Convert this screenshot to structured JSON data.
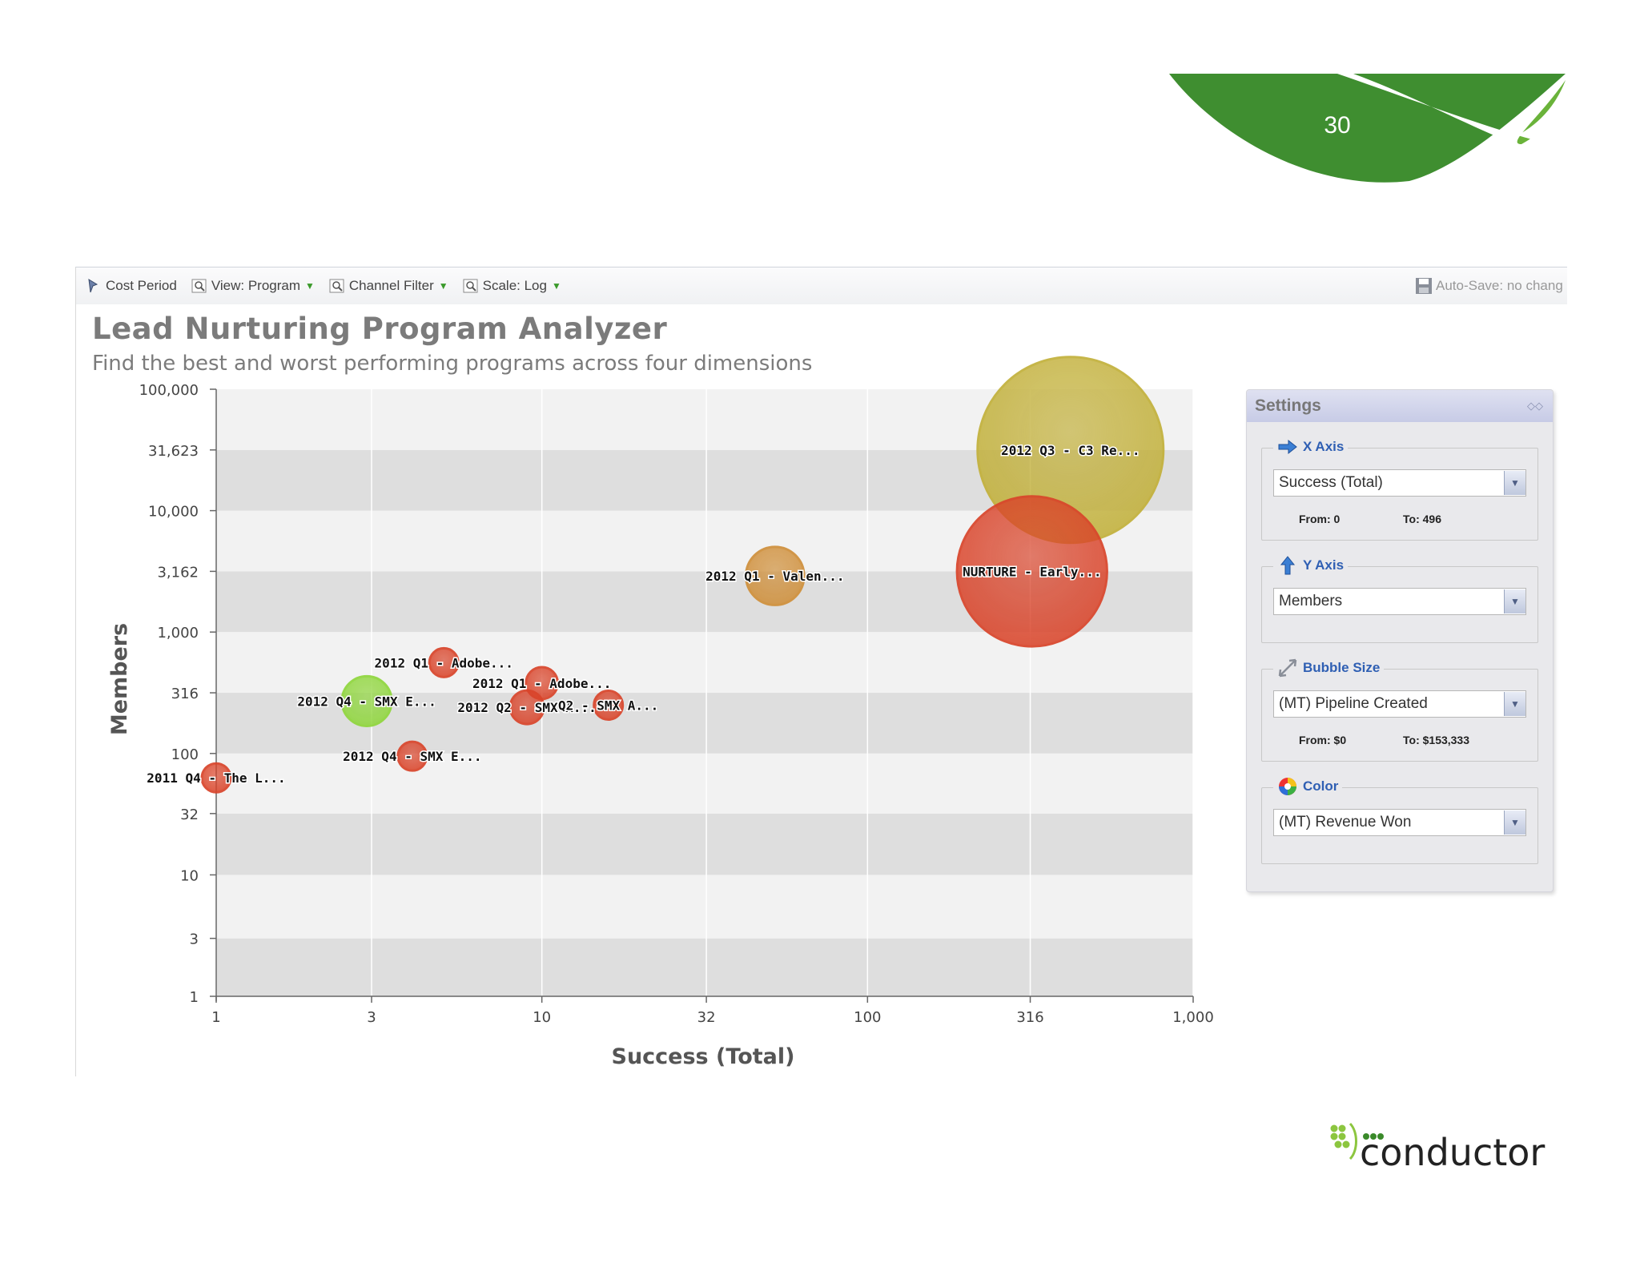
{
  "slide": {
    "number": "30"
  },
  "toolbar": {
    "items": [
      {
        "label": "Cost Period"
      },
      {
        "label": "View: Program"
      },
      {
        "label": "Channel Filter"
      },
      {
        "label": "Scale: Log"
      }
    ],
    "autosave": "Auto-Save: no chang"
  },
  "app": {
    "title": "Lead Nurturing Program Analyzer",
    "subtitle": "Find the best and worst performing programs across four dimensions"
  },
  "settings": {
    "title": "Settings",
    "x_axis": {
      "legend": "X Axis",
      "value": "Success (Total)",
      "from": "From: 0",
      "to": "To: 496"
    },
    "y_axis": {
      "legend": "Y Axis",
      "value": "Members"
    },
    "bubble_size": {
      "legend": "Bubble Size",
      "value": "(MT) Pipeline Created",
      "from": "From: $0",
      "to": "To: $153,333"
    },
    "color": {
      "legend": "Color",
      "value": "(MT) Revenue Won"
    }
  },
  "logo": {
    "text": "conductor"
  },
  "colors": {
    "green_light": "#8fc84a",
    "green_dark": "#2e8a2e",
    "bubble_red": "#d9442a",
    "bubble_orange": "#cf8f3a",
    "bubble_olive": "#c2b03a",
    "bubble_green": "#8fd63c"
  },
  "chart_data": {
    "type": "scatter",
    "xlabel": "Success (Total)",
    "ylabel": "Members",
    "x_scale": "log",
    "y_scale": "log",
    "xlim": [
      1,
      1000
    ],
    "ylim": [
      1,
      100000
    ],
    "x_ticks": [
      1,
      3,
      10,
      32,
      100,
      316,
      1000
    ],
    "x_tick_labels": [
      "1",
      "3",
      "10",
      "32",
      "100",
      "316",
      "1,000"
    ],
    "y_ticks": [
      1,
      3,
      10,
      32,
      100,
      316,
      1000,
      3162,
      10000,
      31623,
      100000
    ],
    "y_tick_labels": [
      "1",
      "3",
      "10",
      "32",
      "100",
      "316",
      "1,000",
      "3,162",
      "10,000",
      "31,623",
      "100,000"
    ],
    "grid": true,
    "points": [
      {
        "label": "2012 Q3 - C3 Re...",
        "x": 420,
        "y": 31623,
        "size": 153333,
        "color": "#c2b03a"
      },
      {
        "label": "NURTURE - Early...",
        "x": 320,
        "y": 3162,
        "size": 100000,
        "color": "#d9442a"
      },
      {
        "label": "2012 Q1 - Valen...",
        "x": 52,
        "y": 2900,
        "size": 15000,
        "color": "#cf8f3a"
      },
      {
        "label": "2012 Q1 - Adobe...",
        "x": 5,
        "y": 560,
        "size": 3000,
        "color": "#d9442a"
      },
      {
        "label": "2012 Q1 - Adobe...",
        "x": 10,
        "y": 380,
        "size": 4500,
        "color": "#d9442a"
      },
      {
        "label": "2012 Q2 - SMX A...",
        "x": 9,
        "y": 240,
        "size": 5000,
        "color": "#d9442a"
      },
      {
        "label": "Q2 - SMX A...",
        "x": 16,
        "y": 250,
        "size": 3500,
        "color": "#d9442a"
      },
      {
        "label": "2012 Q4 - SMX E...",
        "x": 2.9,
        "y": 270,
        "size": 11000,
        "color": "#8fd63c"
      },
      {
        "label": "2012 Q4 - SMX E...",
        "x": 4,
        "y": 95,
        "size": 3000,
        "color": "#d9442a"
      },
      {
        "label": "2011 Q4 - The L...",
        "x": 1,
        "y": 63,
        "size": 3500,
        "color": "#d9442a"
      }
    ]
  }
}
